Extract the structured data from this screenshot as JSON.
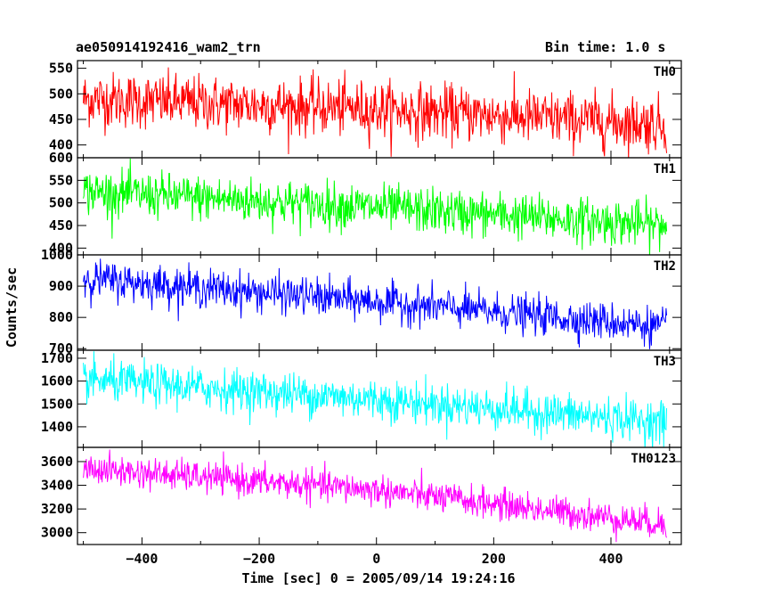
{
  "header": {
    "title": "ae050914192416_wam2_trn",
    "bin_time": "Bin time: 1.0 s"
  },
  "chart_data": {
    "type": "line",
    "title": "ae050914192416_wam2_trn",
    "subtitle": "Bin time: 1.0 s",
    "xlabel": "Time [sec] 0 = 2005/09/14 19:24:16",
    "ylabel": "Counts/sec",
    "xlim": [
      -510,
      520
    ],
    "xticks": [
      -400,
      -200,
      0,
      200,
      400
    ],
    "xticklabels": [
      "−400",
      "−200",
      "0",
      "200",
      "400"
    ],
    "x_range": [
      -500,
      495
    ],
    "bin_time": 1.0,
    "grid": false,
    "panels": [
      {
        "name": "TH0",
        "color": "#ff0000",
        "ylim": [
          375,
          565
        ],
        "yticks": [
          400,
          450,
          500,
          550
        ],
        "trend": {
          "x": [
            -500,
            0,
            495
          ],
          "y": [
            490,
            470,
            440
          ]
        },
        "noise_sd": 27
      },
      {
        "name": "TH1",
        "color": "#00ff00",
        "ylim": [
          385,
          600
        ],
        "yticks": [
          400,
          450,
          500,
          550,
          600
        ],
        "trend": {
          "x": [
            -500,
            0,
            495
          ],
          "y": [
            525,
            490,
            450
          ]
        },
        "noise_sd": 25
      },
      {
        "name": "TH2",
        "color": "#0000ff",
        "ylim": [
          695,
          1000
        ],
        "yticks": [
          700,
          800,
          900,
          1000
        ],
        "trend": {
          "x": [
            -500,
            0,
            495
          ],
          "y": [
            925,
            850,
            770
          ]
        },
        "noise_sd": 30
      },
      {
        "name": "TH3",
        "color": "#00ffff",
        "ylim": [
          1310,
          1735
        ],
        "yticks": [
          1400,
          1500,
          1600,
          1700
        ],
        "trend": {
          "x": [
            -500,
            0,
            495
          ],
          "y": [
            1605,
            1520,
            1420
          ]
        },
        "noise_sd": 45
      },
      {
        "name": "TH0123",
        "color": "#ff00ff",
        "ylim": [
          2900,
          3720
        ],
        "yticks": [
          3000,
          3200,
          3400,
          3600
        ],
        "trend": {
          "x": [
            -500,
            0,
            495
          ],
          "y": [
            3540,
            3360,
            3070
          ]
        },
        "noise_sd": 65
      }
    ]
  }
}
